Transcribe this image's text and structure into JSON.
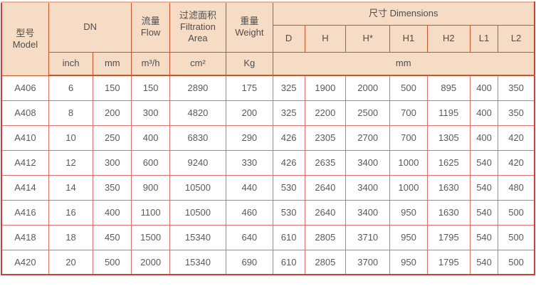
{
  "colors": {
    "header_bg": "#f6dbc5",
    "header_border": "#c9542e",
    "body_border": "#e2716b",
    "outer_border": "#c8413a",
    "outer_top": "#ecb29c",
    "header_text": "#4e4e4e",
    "body_text": "#5a5a5a",
    "page_bg": "#ffffff"
  },
  "table": {
    "header": {
      "model_zh": "型号",
      "model_en": "Model",
      "dn": "DN",
      "flow_zh": "流量",
      "flow_en": "Flow",
      "filtration_zh": "过滤面积",
      "filtration_en": "Filtration Area",
      "weight_zh": "重量",
      "weight_en": "Weight",
      "dimensions": "尺寸 Dimensions",
      "dim_cols": [
        "D",
        "H",
        "H*",
        "H1",
        "H2",
        "L1",
        "L2"
      ],
      "unit_inch": "inch",
      "unit_mm": "mm",
      "unit_flow": "m³/h",
      "unit_area": "cm²",
      "unit_weight": "Kg",
      "unit_dims": "mm"
    },
    "col_keys": [
      "model",
      "dn-inch",
      "dn-mm",
      "flow",
      "filtration-area",
      "weight",
      "dim-d",
      "dim-h",
      "dim-hstar",
      "dim-h1",
      "dim-h2",
      "dim-l1",
      "dim-l2"
    ],
    "rows": [
      [
        "A406",
        "6",
        "150",
        "150",
        "2890",
        "175",
        "325",
        "1900",
        "2000",
        "500",
        "895",
        "400",
        "350"
      ],
      [
        "A408",
        "8",
        "200",
        "300",
        "4820",
        "200",
        "325",
        "2200",
        "2500",
        "700",
        "1195",
        "400",
        "350"
      ],
      [
        "A410",
        "10",
        "250",
        "400",
        "6830",
        "290",
        "426",
        "2305",
        "2700",
        "700",
        "1305",
        "400",
        "420"
      ],
      [
        "A412",
        "12",
        "300",
        "600",
        "9240",
        "330",
        "426",
        "2635",
        "3400",
        "1000",
        "1625",
        "540",
        "420"
      ],
      [
        "A414",
        "14",
        "350",
        "900",
        "10500",
        "440",
        "530",
        "2640",
        "3400",
        "1000",
        "1630",
        "540",
        "480"
      ],
      [
        "A416",
        "16",
        "400",
        "1100",
        "10500",
        "460",
        "530",
        "2640",
        "3400",
        "950",
        "1630",
        "540",
        "500"
      ],
      [
        "A418",
        "18",
        "450",
        "1500",
        "15340",
        "640",
        "610",
        "2805",
        "3710",
        "950",
        "1795",
        "540",
        "500"
      ],
      [
        "A420",
        "20",
        "500",
        "2000",
        "15340",
        "690",
        "610",
        "2805",
        "3700",
        "950",
        "1795",
        "540",
        "500"
      ]
    ]
  }
}
